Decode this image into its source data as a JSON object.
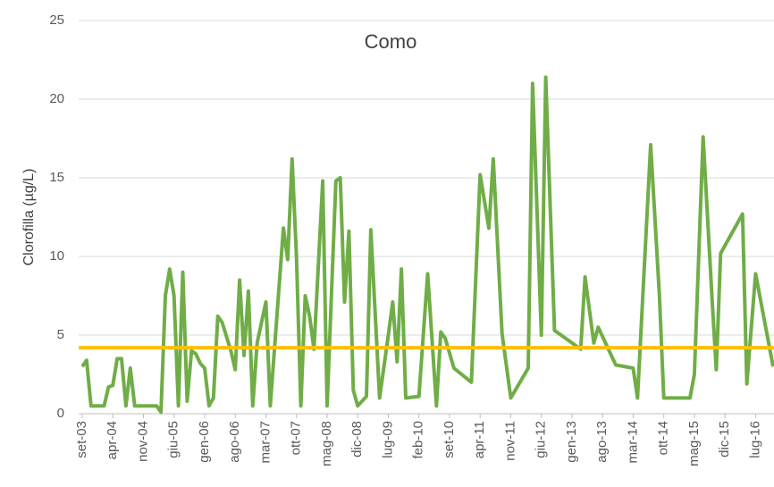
{
  "chart_data": {
    "type": "line",
    "title": "Como",
    "y_label": "Clorofilla (µg/L)",
    "x": [
      "2003-09",
      "2003-10",
      "2003-11",
      "2004-02",
      "2004-03",
      "2004-04",
      "2004-05",
      "2004-06",
      "2004-07",
      "2004-08",
      "2004-09",
      "2004-10",
      "2005-02",
      "2005-03",
      "2005-04",
      "2005-05",
      "2005-06",
      "2005-07",
      "2005-08",
      "2005-09",
      "2005-10",
      "2005-11",
      "2005-12",
      "2006-01",
      "2006-02",
      "2006-03",
      "2006-04",
      "2006-05",
      "2006-07",
      "2006-08",
      "2006-09",
      "2006-10",
      "2006-11",
      "2006-12",
      "2007-01",
      "2007-03",
      "2007-04",
      "2007-07",
      "2007-08",
      "2007-09",
      "2007-10",
      "2007-11",
      "2007-12",
      "2008-01",
      "2008-02",
      "2008-04",
      "2008-05",
      "2008-07",
      "2008-08",
      "2008-09",
      "2008-10",
      "2008-11",
      "2008-12",
      "2009-02",
      "2009-03",
      "2009-05",
      "2009-07",
      "2009-08",
      "2009-09",
      "2009-10",
      "2009-11",
      "2010-02",
      "2010-04",
      "2010-06",
      "2010-07",
      "2010-08",
      "2010-10",
      "2011-02",
      "2011-04",
      "2011-06",
      "2011-07",
      "2011-09",
      "2011-11",
      "2012-03",
      "2012-04",
      "2012-06",
      "2012-07",
      "2012-09",
      "2013-03",
      "2013-04",
      "2013-06",
      "2013-07",
      "2013-11",
      "2014-03",
      "2014-04",
      "2014-07",
      "2014-09",
      "2014-10",
      "2015-04",
      "2015-05",
      "2015-07",
      "2015-09",
      "2015-10",
      "2015-11",
      "2016-04",
      "2016-05",
      "2016-07",
      "2016-11"
    ],
    "series": [
      {
        "color": "#70ad47",
        "values": [
          3.0,
          3.4,
          0.5,
          0.5,
          1.7,
          1.8,
          3.5,
          3.5,
          0.5,
          2.9,
          0.5,
          0.5,
          0.5,
          0.1,
          7.5,
          9.2,
          7.5,
          0.5,
          9.0,
          0.8,
          4.0,
          3.8,
          3.2,
          2.9,
          0.5,
          1.0,
          6.2,
          5.8,
          4.0,
          2.8,
          8.5,
          3.7,
          7.8,
          0.5,
          4.5,
          7.1,
          0.5,
          11.8,
          9.8,
          16.2,
          10,
          0.5,
          7.5,
          6.2,
          4.1,
          14.8,
          0.5,
          14.8,
          15.0,
          7.1,
          11.6,
          1.5,
          0.5,
          1.1,
          11.7,
          1.0,
          5.0,
          7.1,
          3.3,
          9.2,
          1.0,
          1.1,
          8.9,
          0.5,
          5.2,
          4.8,
          2.9,
          2.0,
          15.2,
          11.8,
          16.2,
          5.1,
          1.0,
          2.9,
          21.0,
          5.0,
          21.4,
          5.3,
          4.1,
          8.7,
          4.5,
          5.5,
          3.1,
          2.9,
          1.0,
          17.1,
          7.5,
          1.0,
          1.0,
          2.5,
          17.6,
          7.5,
          2.8,
          10.2,
          12.7,
          1.9,
          8.9,
          3.0
        ]
      }
    ],
    "reference_line": {
      "value": 4.2,
      "color": "#ffc000"
    },
    "xlim": [
      "2003-09",
      "2016-11"
    ],
    "xticks": [
      {
        "value": "2003-09",
        "label": "set-03"
      },
      {
        "value": "2004-04",
        "label": "apr-04"
      },
      {
        "value": "2004-11",
        "label": "nov-04"
      },
      {
        "value": "2005-06",
        "label": "giu-05"
      },
      {
        "value": "2006-01",
        "label": "gen-06"
      },
      {
        "value": "2006-08",
        "label": "ago-06"
      },
      {
        "value": "2007-03",
        "label": "mar-07"
      },
      {
        "value": "2007-10",
        "label": "ott-07"
      },
      {
        "value": "2008-05",
        "label": "mag-08"
      },
      {
        "value": "2008-12",
        "label": "dic-08"
      },
      {
        "value": "2009-07",
        "label": "lug-09"
      },
      {
        "value": "2010-02",
        "label": "feb-10"
      },
      {
        "value": "2010-09",
        "label": "set-10"
      },
      {
        "value": "2011-04",
        "label": "apr-11"
      },
      {
        "value": "2011-11",
        "label": "nov-11"
      },
      {
        "value": "2012-06",
        "label": "giu-12"
      },
      {
        "value": "2013-01",
        "label": "gen-13"
      },
      {
        "value": "2013-08",
        "label": "ago-13"
      },
      {
        "value": "2014-03",
        "label": "mar-14"
      },
      {
        "value": "2014-10",
        "label": "ott-14"
      },
      {
        "value": "2015-05",
        "label": "mag-15"
      },
      {
        "value": "2015-12",
        "label": "dic-15"
      },
      {
        "value": "2016-07",
        "label": "lug-16"
      }
    ],
    "ylim": [
      0,
      25
    ],
    "yticks": [
      0,
      5,
      10,
      15,
      20,
      25
    ],
    "grid": true
  }
}
